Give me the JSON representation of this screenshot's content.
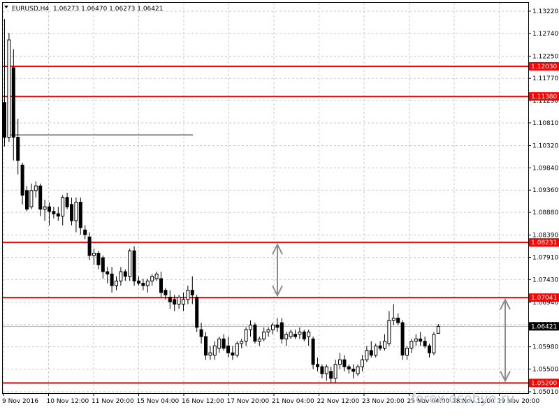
{
  "window": {
    "symbol": "EURUSD,H4",
    "ohlc": "1.06273 1.06470 1.06273 1.06421",
    "watermark": "forex.osobye.ru"
  },
  "colors": {
    "level": "#ff0000",
    "bull": "#ffffff",
    "bear": "#000000",
    "annotation": "#8c8c8c",
    "grid": "#c8c8c8"
  },
  "chart_data": {
    "type": "candlestick",
    "title": "EURUSD,H4",
    "ylim": [
      1.0498,
      1.134
    ],
    "yticks": [
      "1.13220",
      "1.12740",
      "1.12250",
      "1.11770",
      "1.11290",
      "1.10810",
      "1.10320",
      "1.09840",
      "1.09360",
      "1.08880",
      "1.08390",
      "1.07910",
      "1.07430",
      "1.06940",
      "1.06460",
      "1.05980",
      "1.05500",
      "1.05010"
    ],
    "xticks": [
      "9 Nov 2016",
      "10 Nov 12:00",
      "11 Nov 20:00",
      "15 Nov 04:00",
      "16 Nov 12:00",
      "17 Nov 20:00",
      "21 Nov 04:00",
      "22 Nov 12:00",
      "23 Nov 20:00",
      "25 Nov 04:00",
      "28 Nov 12:00",
      "29 Nov 20:00"
    ],
    "levels": [
      "1.12030",
      "1.11380",
      "1.08231",
      "1.07041",
      "1.05200"
    ],
    "current_price": "1.06421",
    "gray_level": 1.1055,
    "arrow_ranges": [
      [
        1.08231,
        1.07041
      ],
      [
        1.07041,
        1.052
      ]
    ],
    "candles": [
      {
        "o": 1.1125,
        "h": 1.1305,
        "l": 1.103,
        "c": 1.105
      },
      {
        "o": 1.105,
        "h": 1.1275,
        "l": 1.104,
        "c": 1.126
      },
      {
        "o": 1.12,
        "h": 1.124,
        "l": 1.1,
        "c": 1.105
      },
      {
        "o": 1.105,
        "h": 1.109,
        "l": 1.097,
        "c": 1.1
      },
      {
        "o": 1.099,
        "h": 1.0995,
        "l": 1.0905,
        "c": 1.0925
      },
      {
        "o": 1.0935,
        "h": 1.0945,
        "l": 1.089,
        "c": 1.0895
      },
      {
        "o": 1.09,
        "h": 1.095,
        "l": 1.0895,
        "c": 1.0935
      },
      {
        "o": 1.0935,
        "h": 1.0955,
        "l": 1.092,
        "c": 1.0945
      },
      {
        "o": 1.0945,
        "h": 1.095,
        "l": 1.088,
        "c": 1.0895
      },
      {
        "o": 1.0895,
        "h": 1.0915,
        "l": 1.087,
        "c": 1.09
      },
      {
        "o": 1.09,
        "h": 1.091,
        "l": 1.086,
        "c": 1.089
      },
      {
        "o": 1.089,
        "h": 1.09,
        "l": 1.0875,
        "c": 1.0885
      },
      {
        "o": 1.0885,
        "h": 1.09,
        "l": 1.087,
        "c": 1.088
      },
      {
        "o": 1.088,
        "h": 1.0925,
        "l": 1.086,
        "c": 1.092
      },
      {
        "o": 1.092,
        "h": 1.093,
        "l": 1.0895,
        "c": 1.09
      },
      {
        "o": 1.0905,
        "h": 1.092,
        "l": 1.086,
        "c": 1.087
      },
      {
        "o": 1.087,
        "h": 1.092,
        "l": 1.0845,
        "c": 1.091
      },
      {
        "o": 1.091,
        "h": 1.092,
        "l": 1.084,
        "c": 1.0855
      },
      {
        "o": 1.085,
        "h": 1.086,
        "l": 1.083,
        "c": 1.084
      },
      {
        "o": 1.0835,
        "h": 1.0845,
        "l": 1.0785,
        "c": 1.0795
      },
      {
        "o": 1.0795,
        "h": 1.081,
        "l": 1.0775,
        "c": 1.08
      },
      {
        "o": 1.08,
        "h": 1.0805,
        "l": 1.0765,
        "c": 1.0775
      },
      {
        "o": 1.079,
        "h": 1.0795,
        "l": 1.0745,
        "c": 1.076
      },
      {
        "o": 1.076,
        "h": 1.077,
        "l": 1.0735,
        "c": 1.0755
      },
      {
        "o": 1.0755,
        "h": 1.077,
        "l": 1.0715,
        "c": 1.073
      },
      {
        "o": 1.073,
        "h": 1.075,
        "l": 1.072,
        "c": 1.074
      },
      {
        "o": 1.074,
        "h": 1.077,
        "l": 1.073,
        "c": 1.076
      },
      {
        "o": 1.076,
        "h": 1.0765,
        "l": 1.074,
        "c": 1.075
      },
      {
        "o": 1.075,
        "h": 1.081,
        "l": 1.074,
        "c": 1.0805
      },
      {
        "o": 1.0805,
        "h": 1.0815,
        "l": 1.073,
        "c": 1.074
      },
      {
        "o": 1.074,
        "h": 1.075,
        "l": 1.073,
        "c": 1.0735
      },
      {
        "o": 1.0735,
        "h": 1.0745,
        "l": 1.072,
        "c": 1.073
      },
      {
        "o": 1.073,
        "h": 1.0745,
        "l": 1.0715,
        "c": 1.074
      },
      {
        "o": 1.074,
        "h": 1.0755,
        "l": 1.073,
        "c": 1.075
      },
      {
        "o": 1.0745,
        "h": 1.076,
        "l": 1.074,
        "c": 1.0755
      },
      {
        "o": 1.0745,
        "h": 1.076,
        "l": 1.0705,
        "c": 1.0715
      },
      {
        "o": 1.072,
        "h": 1.0725,
        "l": 1.07,
        "c": 1.071
      },
      {
        "o": 1.0705,
        "h": 1.072,
        "l": 1.068,
        "c": 1.0695
      },
      {
        "o": 1.07,
        "h": 1.071,
        "l": 1.0675,
        "c": 1.069
      },
      {
        "o": 1.069,
        "h": 1.071,
        "l": 1.068,
        "c": 1.0705
      },
      {
        "o": 1.069,
        "h": 1.0715,
        "l": 1.0675,
        "c": 1.07
      },
      {
        "o": 1.07,
        "h": 1.073,
        "l": 1.069,
        "c": 1.072
      },
      {
        "o": 1.072,
        "h": 1.075,
        "l": 1.069,
        "c": 1.071
      },
      {
        "o": 1.0705,
        "h": 1.071,
        "l": 1.063,
        "c": 1.064
      },
      {
        "o": 1.0635,
        "h": 1.065,
        "l": 1.0605,
        "c": 1.062
      },
      {
        "o": 1.062,
        "h": 1.063,
        "l": 1.057,
        "c": 1.058
      },
      {
        "o": 1.058,
        "h": 1.06,
        "l": 1.057,
        "c": 1.0585
      },
      {
        "o": 1.058,
        "h": 1.061,
        "l": 1.057,
        "c": 1.06
      },
      {
        "o": 1.0595,
        "h": 1.062,
        "l": 1.0585,
        "c": 1.0615
      },
      {
        "o": 1.0615,
        "h": 1.0625,
        "l": 1.059,
        "c": 1.0595
      },
      {
        "o": 1.06,
        "h": 1.062,
        "l": 1.0575,
        "c": 1.0585
      },
      {
        "o": 1.0585,
        "h": 1.06,
        "l": 1.057,
        "c": 1.058
      },
      {
        "o": 1.058,
        "h": 1.061,
        "l": 1.0575,
        "c": 1.0605
      },
      {
        "o": 1.0605,
        "h": 1.0615,
        "l": 1.0595,
        "c": 1.061
      },
      {
        "o": 1.061,
        "h": 1.064,
        "l": 1.06,
        "c": 1.0635
      },
      {
        "o": 1.0635,
        "h": 1.0655,
        "l": 1.062,
        "c": 1.0645
      },
      {
        "o": 1.0645,
        "h": 1.065,
        "l": 1.0605,
        "c": 1.061
      },
      {
        "o": 1.061,
        "h": 1.062,
        "l": 1.06,
        "c": 1.0615
      },
      {
        "o": 1.0615,
        "h": 1.064,
        "l": 1.061,
        "c": 1.063
      },
      {
        "o": 1.063,
        "h": 1.064,
        "l": 1.062,
        "c": 1.0635
      },
      {
        "o": 1.0635,
        "h": 1.065,
        "l": 1.0625,
        "c": 1.0645
      },
      {
        "o": 1.0645,
        "h": 1.066,
        "l": 1.063,
        "c": 1.064
      },
      {
        "o": 1.065,
        "h": 1.066,
        "l": 1.0605,
        "c": 1.0615
      },
      {
        "o": 1.0615,
        "h": 1.063,
        "l": 1.06,
        "c": 1.0625
      },
      {
        "o": 1.062,
        "h": 1.0635,
        "l": 1.0615,
        "c": 1.063
      },
      {
        "o": 1.0625,
        "h": 1.0635,
        "l": 1.0615,
        "c": 1.062
      },
      {
        "o": 1.0625,
        "h": 1.064,
        "l": 1.0615,
        "c": 1.063
      },
      {
        "o": 1.063,
        "h": 1.0635,
        "l": 1.061,
        "c": 1.0615
      },
      {
        "o": 1.062,
        "h": 1.0635,
        "l": 1.06,
        "c": 1.063
      },
      {
        "o": 1.0615,
        "h": 1.062,
        "l": 1.055,
        "c": 1.056
      },
      {
        "o": 1.056,
        "h": 1.0575,
        "l": 1.0545,
        "c": 1.0555
      },
      {
        "o": 1.0555,
        "h": 1.056,
        "l": 1.053,
        "c": 1.054
      },
      {
        "o": 1.054,
        "h": 1.056,
        "l": 1.0525,
        "c": 1.0555
      },
      {
        "o": 1.0545,
        "h": 1.0555,
        "l": 1.052,
        "c": 1.053
      },
      {
        "o": 1.053,
        "h": 1.057,
        "l": 1.052,
        "c": 1.056
      },
      {
        "o": 1.056,
        "h": 1.0585,
        "l": 1.055,
        "c": 1.057
      },
      {
        "o": 1.057,
        "h": 1.058,
        "l": 1.0545,
        "c": 1.0555
      },
      {
        "o": 1.0555,
        "h": 1.056,
        "l": 1.054,
        "c": 1.055
      },
      {
        "o": 1.055,
        "h": 1.056,
        "l": 1.053,
        "c": 1.0545
      },
      {
        "o": 1.054,
        "h": 1.056,
        "l": 1.0535,
        "c": 1.0555
      },
      {
        "o": 1.0555,
        "h": 1.058,
        "l": 1.0545,
        "c": 1.057
      },
      {
        "o": 1.057,
        "h": 1.06,
        "l": 1.0565,
        "c": 1.059
      },
      {
        "o": 1.059,
        "h": 1.061,
        "l": 1.0575,
        "c": 1.058
      },
      {
        "o": 1.058,
        "h": 1.0605,
        "l": 1.0575,
        "c": 1.06
      },
      {
        "o": 1.06,
        "h": 1.061,
        "l": 1.059,
        "c": 1.0595
      },
      {
        "o": 1.0595,
        "h": 1.0625,
        "l": 1.059,
        "c": 1.061
      },
      {
        "o": 1.0605,
        "h": 1.0675,
        "l": 1.06,
        "c": 1.0655
      },
      {
        "o": 1.0655,
        "h": 1.069,
        "l": 1.0645,
        "c": 1.066
      },
      {
        "o": 1.066,
        "h": 1.067,
        "l": 1.0645,
        "c": 1.065
      },
      {
        "o": 1.065,
        "h": 1.0655,
        "l": 1.057,
        "c": 1.058
      },
      {
        "o": 1.058,
        "h": 1.06,
        "l": 1.057,
        "c": 1.0595
      },
      {
        "o": 1.0595,
        "h": 1.0615,
        "l": 1.0585,
        "c": 1.061
      },
      {
        "o": 1.061,
        "h": 1.0625,
        "l": 1.06,
        "c": 1.0615
      },
      {
        "o": 1.0615,
        "h": 1.063,
        "l": 1.06,
        "c": 1.061
      },
      {
        "o": 1.061,
        "h": 1.062,
        "l": 1.0595,
        "c": 1.06
      },
      {
        "o": 1.06,
        "h": 1.0605,
        "l": 1.0575,
        "c": 1.0585
      },
      {
        "o": 1.0585,
        "h": 1.063,
        "l": 1.058,
        "c": 1.0625
      },
      {
        "o": 1.0627,
        "h": 1.0647,
        "l": 1.0627,
        "c": 1.0642
      }
    ]
  }
}
